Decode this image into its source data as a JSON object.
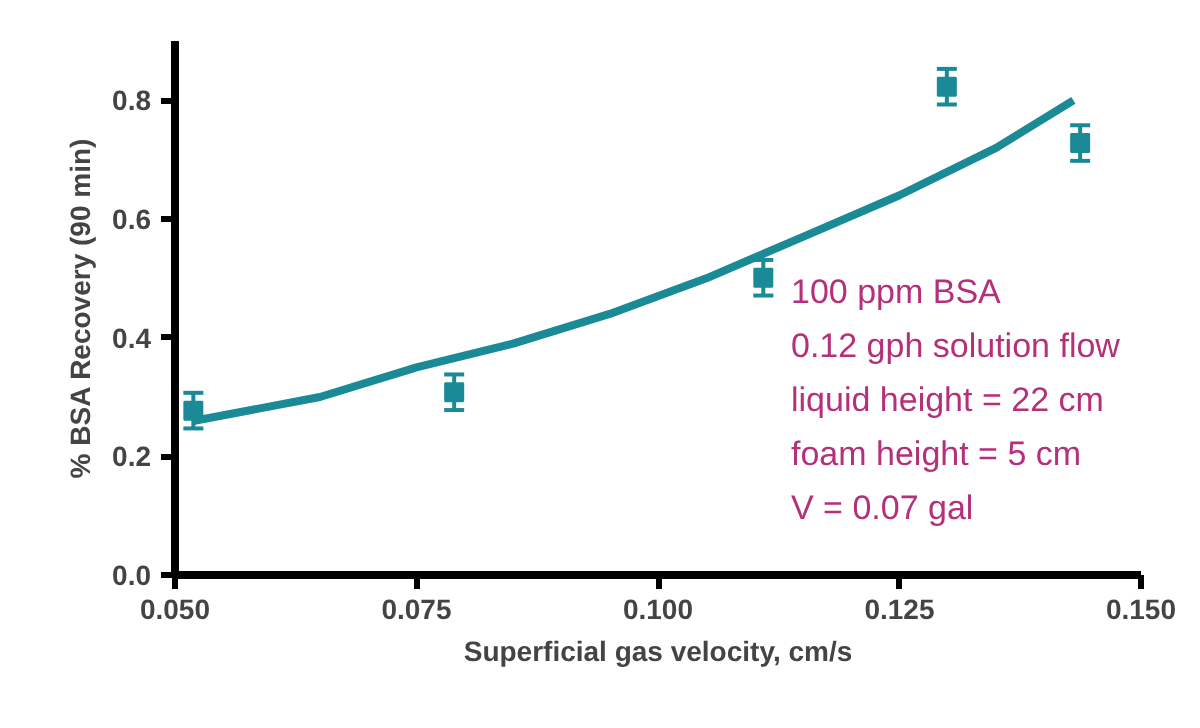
{
  "chart_data": {
    "type": "scatter",
    "xlabel": "Superficial gas velocity, cm/s",
    "ylabel": "% BSA Recovery (90 min)",
    "xlim": [
      0.05,
      0.15
    ],
    "ylim": [
      0,
      0.9
    ],
    "xticks": [
      {
        "value": 0.05,
        "label": "0.050"
      },
      {
        "value": 0.075,
        "label": "0.075"
      },
      {
        "value": 0.1,
        "label": "0.100"
      },
      {
        "value": 0.125,
        "label": "0.125"
      },
      {
        "value": 0.15,
        "label": "0.150"
      }
    ],
    "yticks": [
      {
        "value": 0,
        "label": "0.0"
      },
      0.2,
      0.4,
      0.6,
      0.8
    ],
    "grid": false,
    "marker": "square",
    "series": [
      {
        "color": "#1a8a96",
        "x": [
          0.0519,
          0.0789,
          0.1109,
          0.1299,
          0.1437
        ],
        "values": [
          0.277,
          0.308,
          0.501,
          0.823,
          0.728
        ],
        "errors": [
          0.03,
          0.03,
          0.03,
          0.03,
          0.03
        ]
      },
      {
        "type": "line",
        "color": "#1a8a96",
        "marker": "none",
        "line_style": "solid",
        "x": [
          0.052,
          0.065,
          0.075,
          0.085,
          0.095,
          0.105,
          0.115,
          0.125,
          0.135,
          0.143
        ],
        "values": [
          0.26,
          0.3,
          0.35,
          0.39,
          0.44,
          0.5,
          0.57,
          0.64,
          0.72,
          0.8
        ]
      }
    ],
    "annotations": [
      "100 ppm BSA",
      "0.12 gph solution flow",
      "liquid height = 22 cm",
      "foam height = 5 cm",
      "V = 0.07 gal"
    ]
  }
}
